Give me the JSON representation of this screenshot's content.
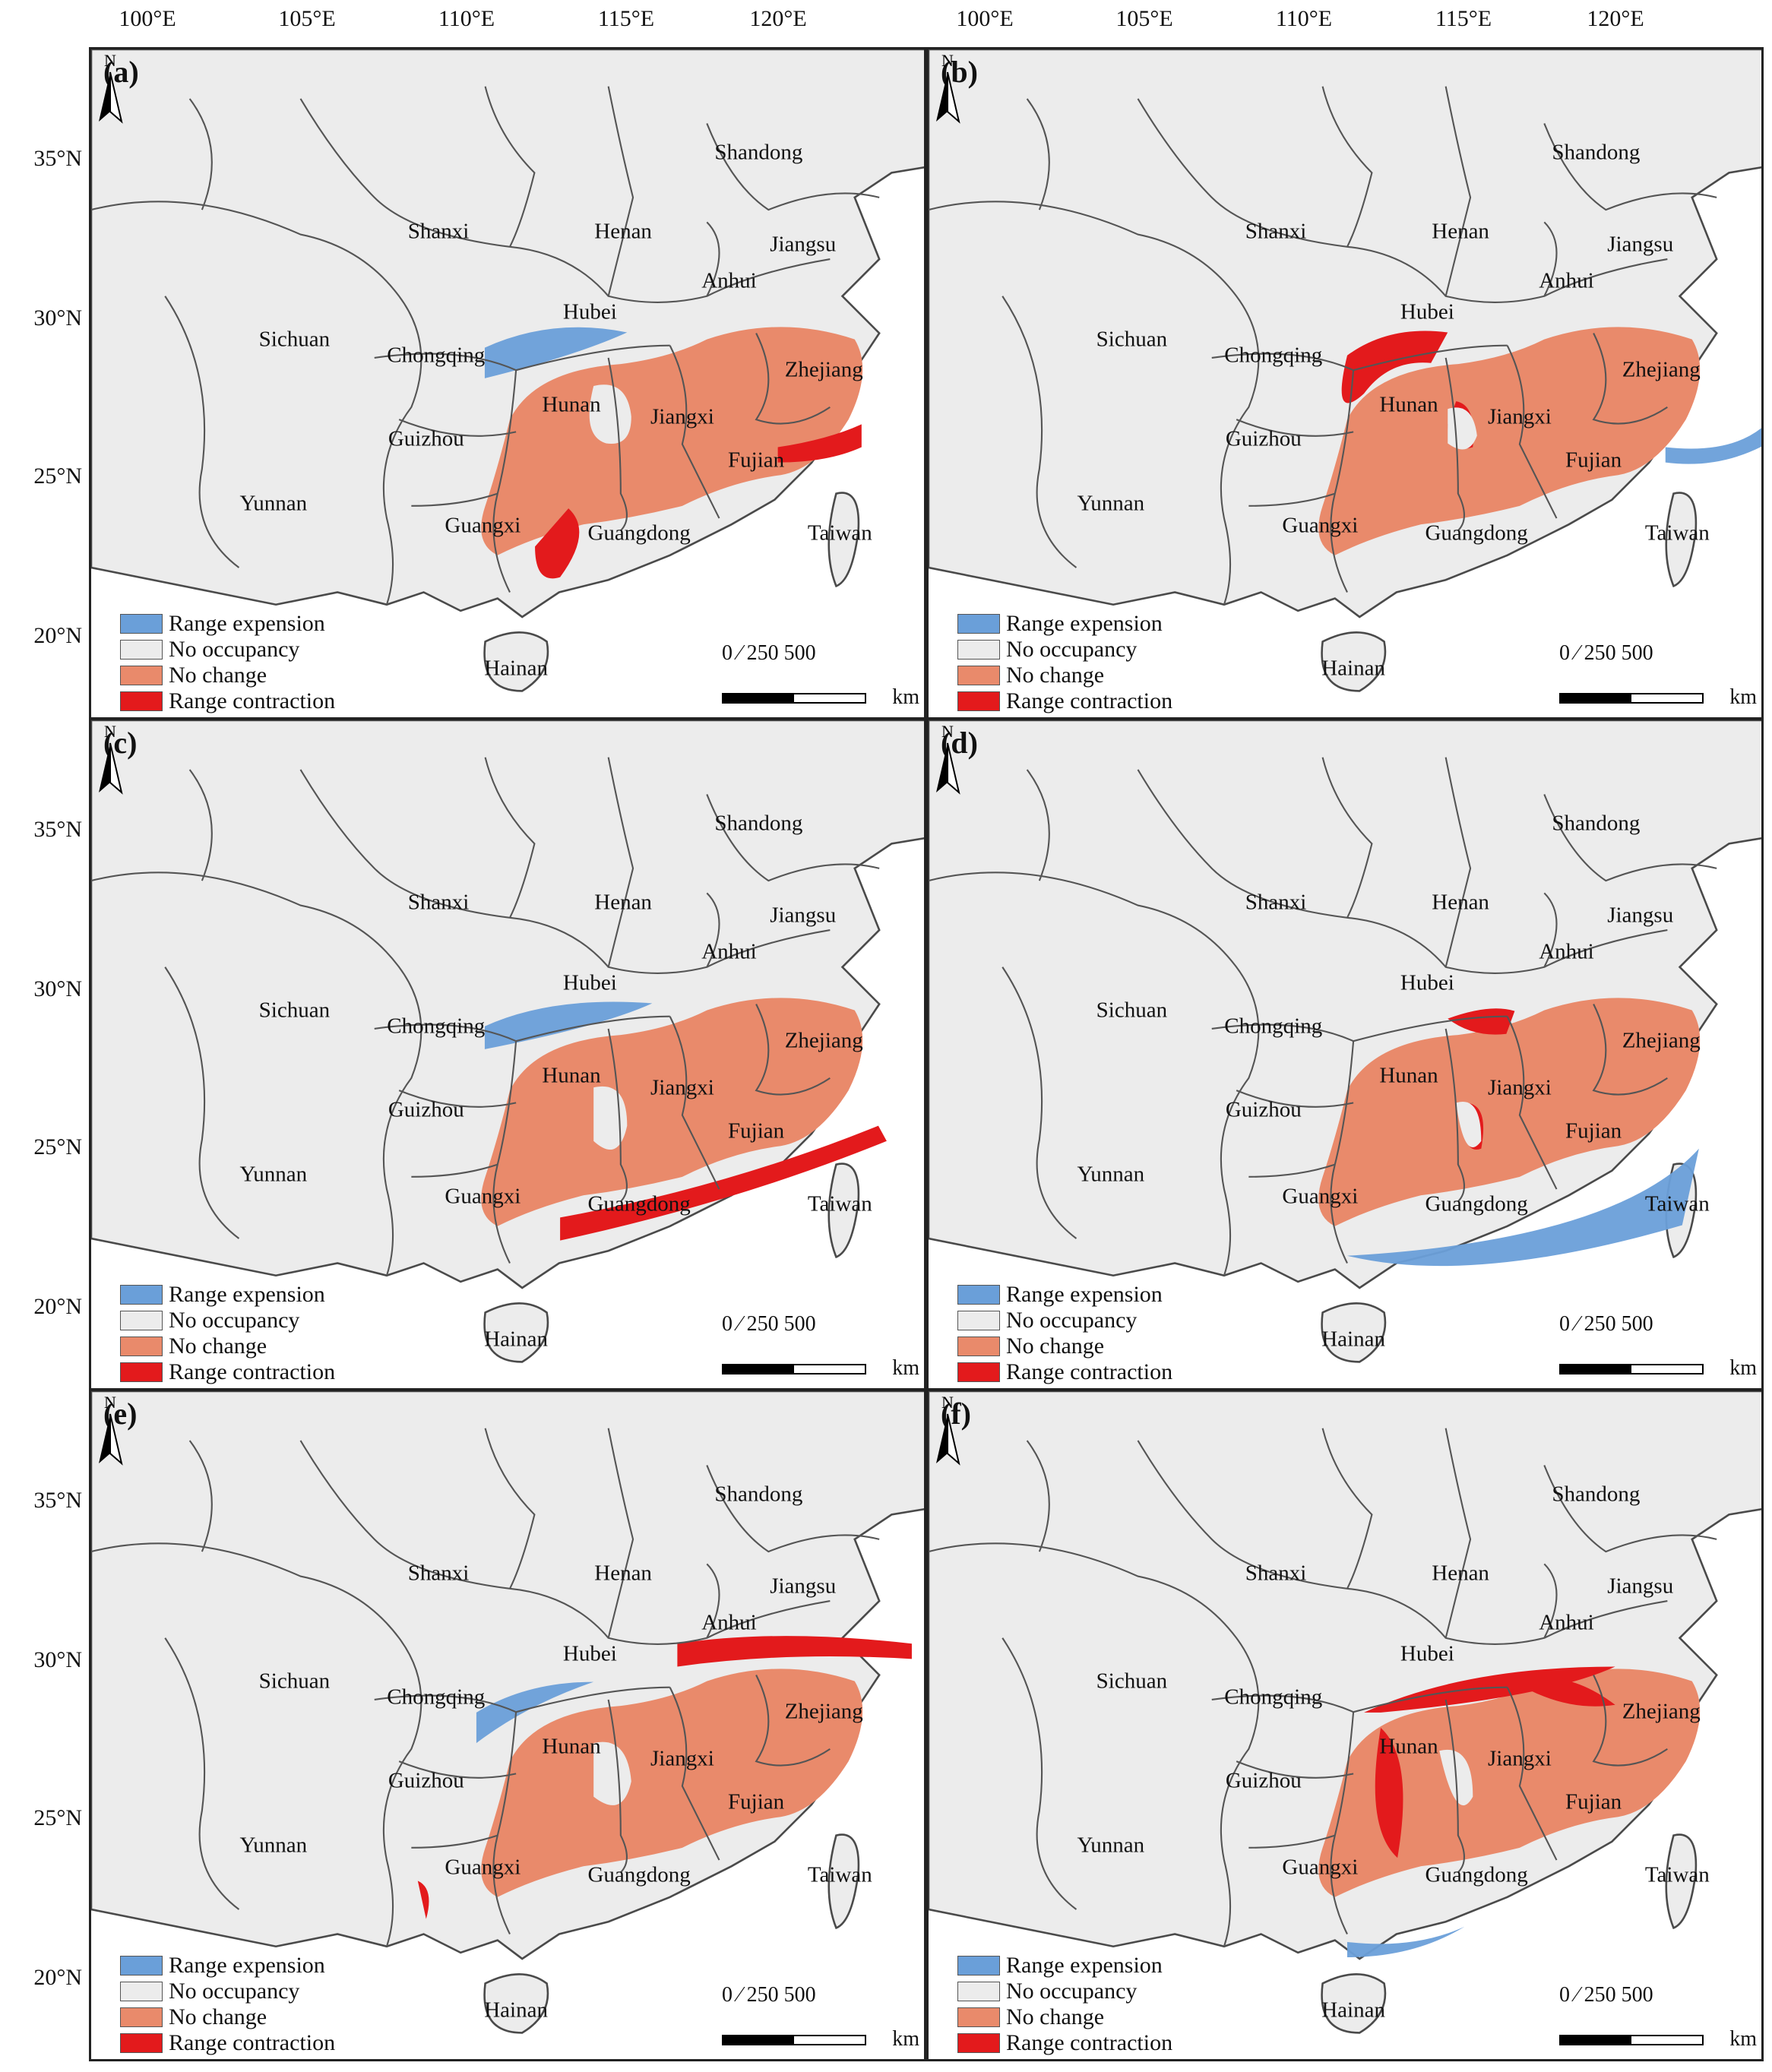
{
  "lon_ticks": [
    "100°E",
    "105°E",
    "110°E",
    "115°E",
    "120°E"
  ],
  "lat_ticks": [
    "35°N",
    "30°N",
    "25°N",
    "20°N"
  ],
  "colors": {
    "expansion": "#6a9fd9",
    "no_occupancy": "#ececec",
    "no_change": "#e98a6b",
    "contraction": "#e31a1c",
    "border": "#555555",
    "coast": "#4a4a4a"
  },
  "legend": [
    {
      "label": "Range expension",
      "color": "#6a9fd9"
    },
    {
      "label": "No occupancy",
      "color": "#ececec"
    },
    {
      "label": "No change",
      "color": "#e98a6b"
    },
    {
      "label": "Range contraction",
      "color": "#e31a1c"
    }
  ],
  "scale_bar": {
    "numbers": "0  ⁄ 250   500",
    "unit": "km"
  },
  "north_label": "N",
  "provinces": [
    "Shandong",
    "Shanxi",
    "Henan",
    "Jiangsu",
    "Anhui",
    "Hubei",
    "Sichuan",
    "Chongqing",
    "Zhejiang",
    "Hunan",
    "Jiangxi",
    "Guizhou",
    "Fujian",
    "Yunnan",
    "Guangxi",
    "Guangdong",
    "Taiwan",
    "Hainan"
  ],
  "panels": [
    {
      "label": "(a)"
    },
    {
      "label": "(b)"
    },
    {
      "label": "(c)"
    },
    {
      "label": "(d)"
    },
    {
      "label": "(e)"
    },
    {
      "label": "(f)"
    }
  ]
}
